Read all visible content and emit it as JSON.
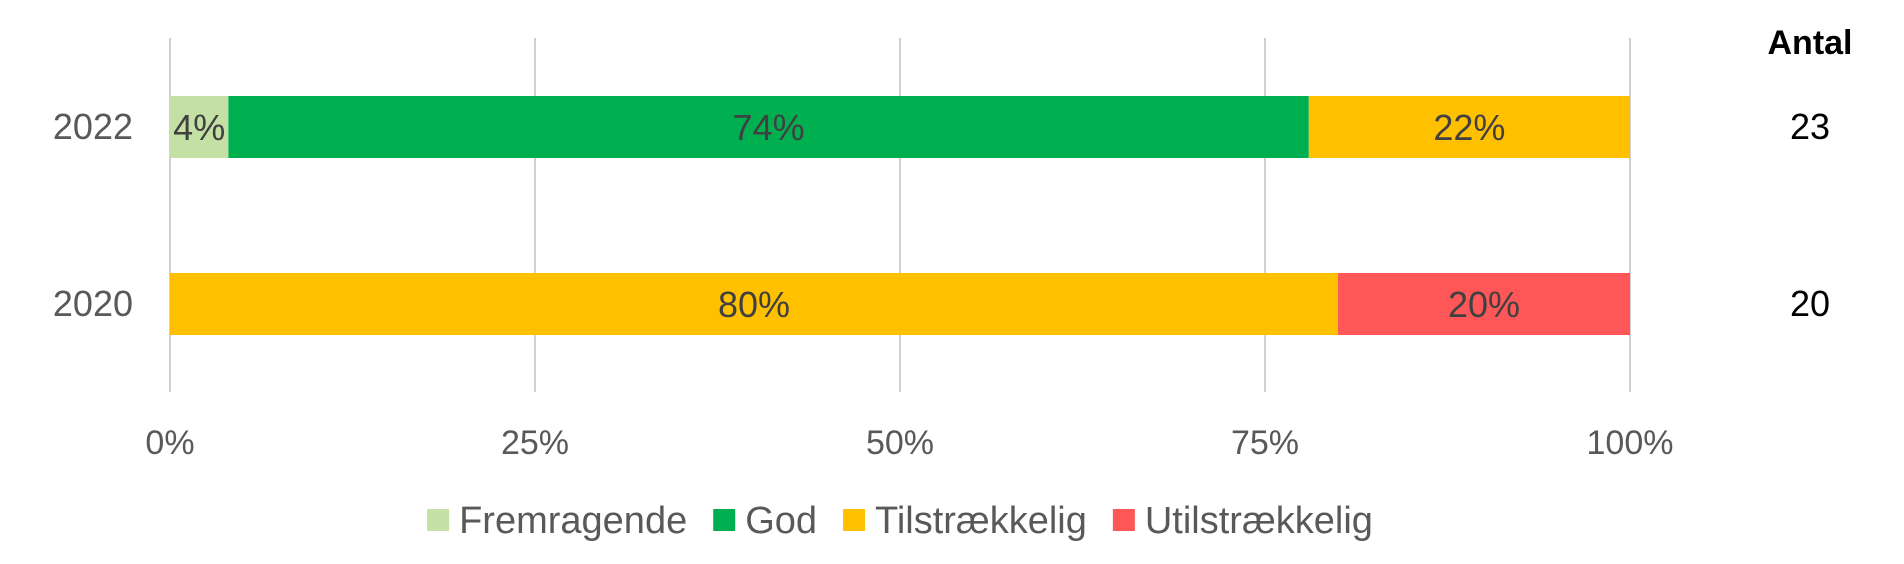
{
  "chart_data": {
    "type": "bar",
    "orientation": "horizontal",
    "stacked": true,
    "percent": true,
    "categories": [
      "2022",
      "2020"
    ],
    "series": [
      {
        "name": "Fremragende",
        "color": "#C5E0A5",
        "values": [
          4,
          0
        ]
      },
      {
        "name": "God",
        "color": "#00B050",
        "values": [
          74,
          0
        ]
      },
      {
        "name": "Tilstrækkelig",
        "color": "#FFC000",
        "values": [
          22,
          80
        ]
      },
      {
        "name": "Utilstrækkelig",
        "color": "#FF5757",
        "values": [
          0,
          20
        ]
      }
    ],
    "xlim": [
      0,
      100
    ],
    "xticks": [
      "0%",
      "25%",
      "50%",
      "75%",
      "100%"
    ],
    "grid": true,
    "legend": "bottom",
    "count_header": "Antal",
    "counts": [
      "23",
      "20"
    ]
  }
}
